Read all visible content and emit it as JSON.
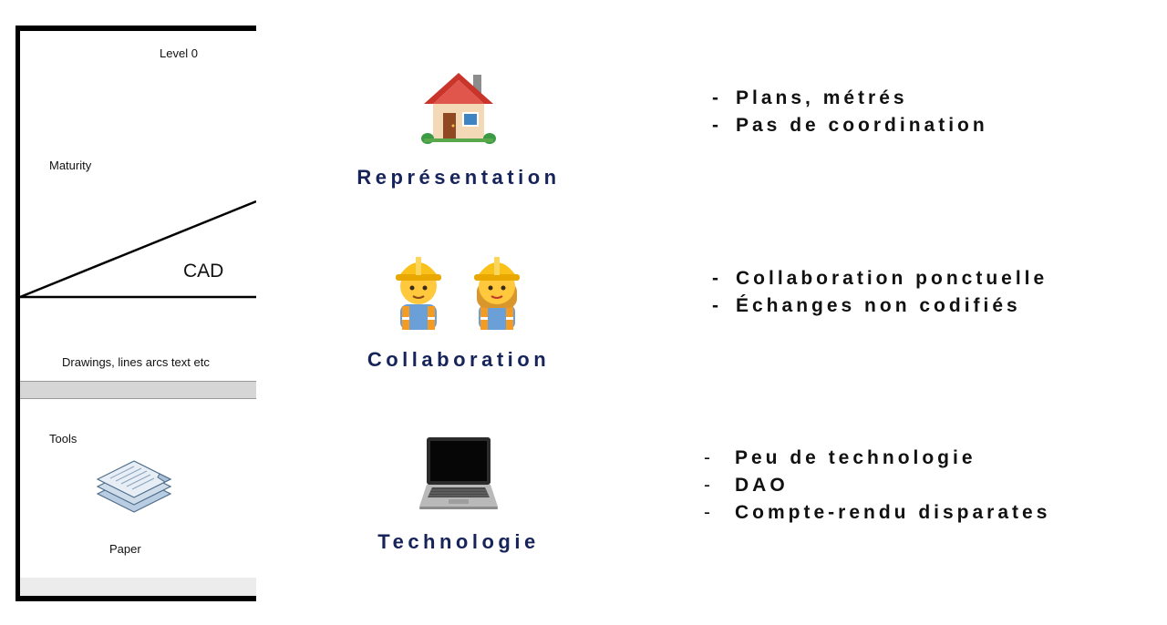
{
  "maturity_diagram": {
    "level_label": "Level 0",
    "maturity_label": "Maturity",
    "cad_label": "CAD",
    "drawings_label": "Drawings, lines arcs text etc",
    "tools_label": "Tools",
    "paper_label": "Paper",
    "paper_icon": "paper-stack-icon"
  },
  "categories": [
    {
      "label": "Représentation",
      "icon": "house-icon",
      "bullets": [
        "Plans, métrés",
        "Pas de coordination"
      ]
    },
    {
      "label": "Collaboration",
      "icon": "construction-workers-icon",
      "bullets": [
        "Collaboration ponctuelle",
        "Échanges non codifiés"
      ]
    },
    {
      "label": "Technologie",
      "icon": "laptop-icon",
      "bullets": [
        "Peu de technologie",
        "DAO",
        "Compte-rendu disparates"
      ]
    }
  ],
  "bullet_marker": "-",
  "colors": {
    "category_label": "#16245a",
    "bullet_text": "#111111",
    "diagram_line": "#000000",
    "diagram_band": "#d6d6d6"
  }
}
